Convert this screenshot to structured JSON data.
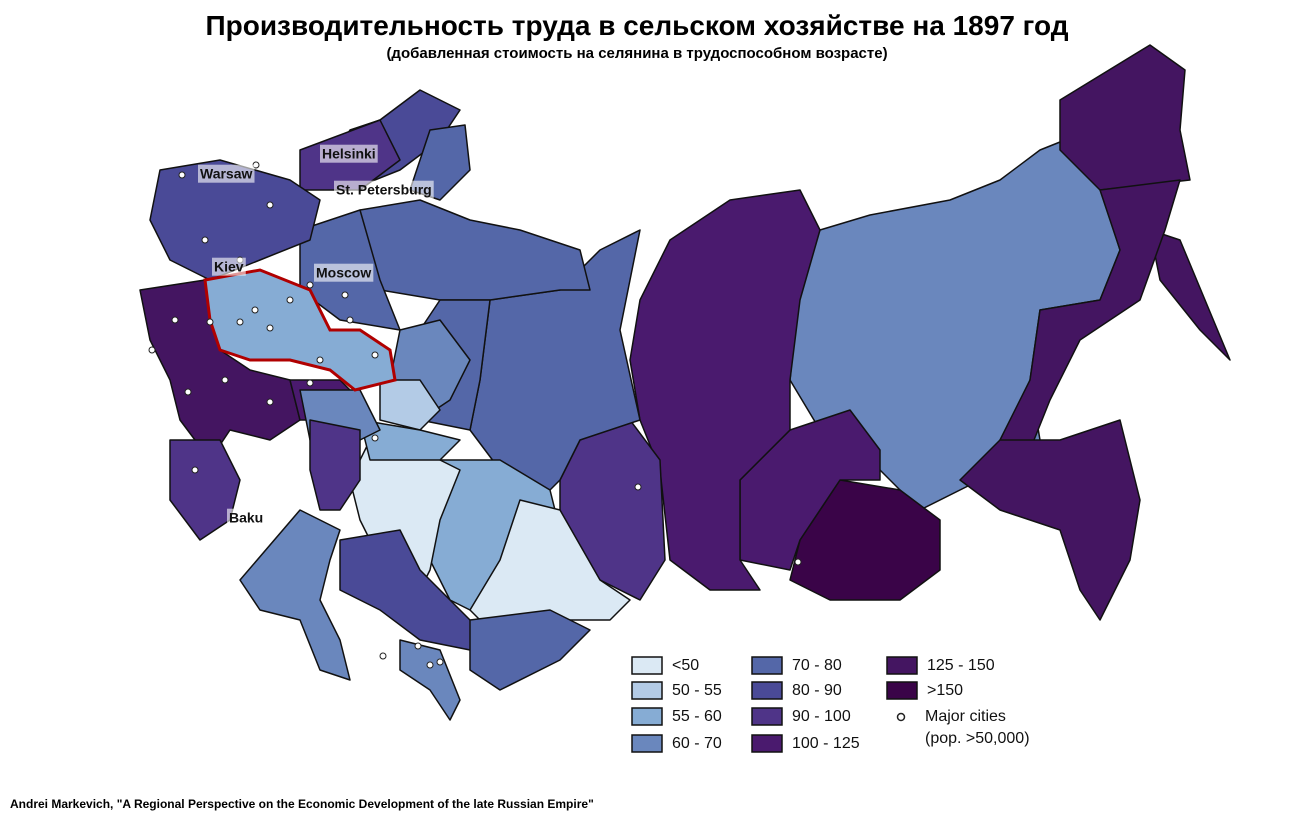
{
  "title": "Производительность труда в сельском хозяйстве на 1897 год",
  "subtitle": "(добавленная стоимость на селянина в трудоспособном возрасте)",
  "cities": [
    "Helsinki",
    "Warsaw",
    "St. Petersburg",
    "Kiev",
    "Moscow",
    "Baku"
  ],
  "legend": {
    "items": [
      {
        "label": "<50",
        "color": "#dbe9f4"
      },
      {
        "label": "50 - 55",
        "color": "#b3cbe6"
      },
      {
        "label": "55 - 60",
        "color": "#86acd4"
      },
      {
        "label": "60 - 70",
        "color": "#6a87bd"
      },
      {
        "label": "70 - 80",
        "color": "#5467a8"
      },
      {
        "label": "80 - 90",
        "color": "#4a4a97"
      },
      {
        "label": "90 - 100",
        "color": "#4f3488"
      },
      {
        "label": "100 - 125",
        "color": "#4a1a6e"
      },
      {
        "label": "125 - 150",
        "color": "#441561"
      },
      {
        "label": ">150",
        "color": "#3a0448"
      }
    ],
    "cities_label": [
      "Major cities",
      "(pop. >50,000)"
    ]
  },
  "source": "Andrei Markevich, \"A Regional Perspective on the Economic Development of the late Russian Empire\""
}
